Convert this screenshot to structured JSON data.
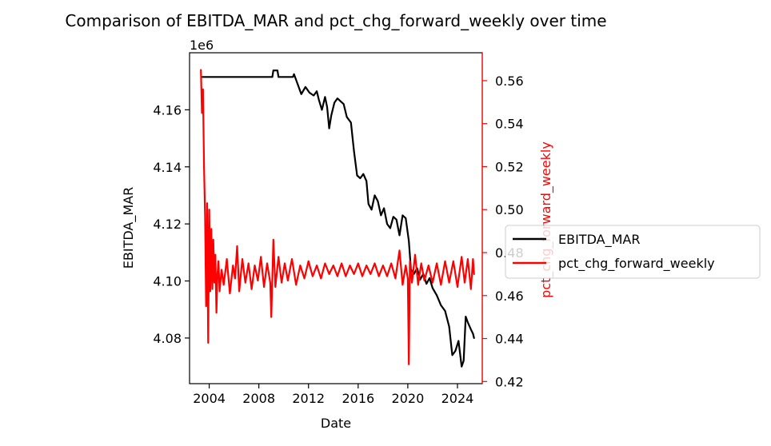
{
  "chart_data": {
    "type": "line",
    "title": "Comparison of EBITDA_MAR and pct_chg_forward_weekly over time",
    "xlabel": "Date",
    "x_range": [
      "2002-06-01",
      "2025-12-31"
    ],
    "x_ticks": [
      "2004",
      "2008",
      "2012",
      "2016",
      "2020",
      "2024"
    ],
    "grid": false,
    "legend_placement": "right, outside plot area",
    "y_left": {
      "label": "EBITDA_MAR",
      "offset_label": "1e6",
      "ylim": [
        4.064,
        4.18
      ],
      "ticks": [
        "4.08",
        "4.10",
        "4.12",
        "4.14",
        "4.16"
      ],
      "color": "#000000"
    },
    "y_right": {
      "label": "pct_chg_forward_weekly",
      "ylim": [
        0.419,
        0.573
      ],
      "ticks": [
        "0.42",
        "0.44",
        "0.46",
        "0.48",
        "0.50",
        "0.52",
        "0.54",
        "0.56"
      ],
      "color": "#ff0000"
    },
    "series": [
      {
        "name": "EBITDA_MAR",
        "axis": "left",
        "color": "#000000",
        "points": [
          [
            "2003-06",
            4.1715
          ],
          [
            "2009-02",
            4.1715
          ],
          [
            "2009-03",
            4.1738
          ],
          [
            "2009-07",
            4.1738
          ],
          [
            "2009-08",
            4.1715
          ],
          [
            "2010-10",
            4.1715
          ],
          [
            "2010-11",
            4.1725
          ],
          [
            "2011-03",
            4.1685
          ],
          [
            "2011-06",
            4.1655
          ],
          [
            "2011-10",
            4.168
          ],
          [
            "2012-02",
            4.166
          ],
          [
            "2012-06",
            4.165
          ],
          [
            "2012-09",
            4.1665
          ],
          [
            "2012-11",
            4.1635
          ],
          [
            "2013-02",
            4.16
          ],
          [
            "2013-05",
            4.1645
          ],
          [
            "2013-07",
            4.161
          ],
          [
            "2013-09",
            4.1535
          ],
          [
            "2013-11",
            4.158
          ],
          [
            "2014-02",
            4.1625
          ],
          [
            "2014-05",
            4.164
          ],
          [
            "2014-08",
            4.163
          ],
          [
            "2014-11",
            4.162
          ],
          [
            "2015-02",
            4.1575
          ],
          [
            "2015-06",
            4.1555
          ],
          [
            "2015-09",
            4.1455
          ],
          [
            "2015-12",
            4.137
          ],
          [
            "2016-03",
            4.136
          ],
          [
            "2016-06",
            4.1375
          ],
          [
            "2016-09",
            4.135
          ],
          [
            "2016-11",
            4.127
          ],
          [
            "2017-02",
            4.125
          ],
          [
            "2017-05",
            4.13
          ],
          [
            "2017-08",
            4.128
          ],
          [
            "2017-11",
            4.123
          ],
          [
            "2018-02",
            4.1255
          ],
          [
            "2018-05",
            4.12
          ],
          [
            "2018-08",
            4.1185
          ],
          [
            "2018-11",
            4.1225
          ],
          [
            "2019-02",
            4.1215
          ],
          [
            "2019-05",
            4.116
          ],
          [
            "2019-08",
            4.123
          ],
          [
            "2019-11",
            4.122
          ],
          [
            "2020-02",
            4.114
          ],
          [
            "2020-04",
            4.104
          ],
          [
            "2020-07",
            4.1025
          ],
          [
            "2020-10",
            4.1045
          ],
          [
            "2021-01",
            4.1005
          ],
          [
            "2021-04",
            4.1025
          ],
          [
            "2021-07",
            4.099
          ],
          [
            "2021-10",
            4.101
          ],
          [
            "2022-01",
            4.0975
          ],
          [
            "2022-05",
            4.095
          ],
          [
            "2022-09",
            4.0915
          ],
          [
            "2023-01",
            4.0895
          ],
          [
            "2023-05",
            4.084
          ],
          [
            "2023-08",
            4.074
          ],
          [
            "2023-11",
            4.0755
          ],
          [
            "2024-02",
            4.079
          ],
          [
            "2024-05",
            4.07
          ],
          [
            "2024-07",
            4.072
          ],
          [
            "2024-09",
            4.0875
          ],
          [
            "2024-11",
            4.0855
          ],
          [
            "2025-02",
            4.083
          ],
          [
            "2025-04",
            4.0815
          ],
          [
            "2025-05",
            4.08
          ]
        ]
      },
      {
        "name": "pct_chg_forward_weekly",
        "axis": "right",
        "color": "#ff0000",
        "points": [
          [
            "2003-05",
            0.565
          ],
          [
            "2003-06",
            0.545
          ],
          [
            "2003-07",
            0.556
          ],
          [
            "2003-08",
            0.52
          ],
          [
            "2003-09",
            0.497
          ],
          [
            "2003-10",
            0.455
          ],
          [
            "2003-11",
            0.503
          ],
          [
            "2003-12",
            0.438
          ],
          [
            "2004-01",
            0.5
          ],
          [
            "2004-02",
            0.462
          ],
          [
            "2004-03",
            0.491
          ],
          [
            "2004-04",
            0.463
          ],
          [
            "2004-05",
            0.486
          ],
          [
            "2004-06",
            0.466
          ],
          [
            "2004-07",
            0.479
          ],
          [
            "2004-08",
            0.452
          ],
          [
            "2004-09",
            0.47
          ],
          [
            "2004-10",
            0.476
          ],
          [
            "2004-11",
            0.462
          ],
          [
            "2005-01",
            0.472
          ],
          [
            "2005-03",
            0.465
          ],
          [
            "2005-06",
            0.477
          ],
          [
            "2005-09",
            0.461
          ],
          [
            "2005-12",
            0.474
          ],
          [
            "2006-02",
            0.468
          ],
          [
            "2006-04",
            0.483
          ],
          [
            "2006-06",
            0.462
          ],
          [
            "2006-09",
            0.477
          ],
          [
            "2006-12",
            0.466
          ],
          [
            "2007-03",
            0.475
          ],
          [
            "2007-06",
            0.463
          ],
          [
            "2007-09",
            0.474
          ],
          [
            "2007-12",
            0.467
          ],
          [
            "2008-03",
            0.478
          ],
          [
            "2008-06",
            0.464
          ],
          [
            "2008-09",
            0.475
          ],
          [
            "2008-12",
            0.466
          ],
          [
            "2009-01",
            0.45
          ],
          [
            "2009-03",
            0.486
          ],
          [
            "2009-05",
            0.464
          ],
          [
            "2009-08",
            0.478
          ],
          [
            "2009-11",
            0.466
          ],
          [
            "2010-02",
            0.475
          ],
          [
            "2010-05",
            0.467
          ],
          [
            "2010-09",
            0.477
          ],
          [
            "2011-01",
            0.465
          ],
          [
            "2011-05",
            0.474
          ],
          [
            "2011-09",
            0.468
          ],
          [
            "2012-01",
            0.476
          ],
          [
            "2012-05",
            0.469
          ],
          [
            "2012-09",
            0.474
          ],
          [
            "2013-01",
            0.468
          ],
          [
            "2013-05",
            0.475
          ],
          [
            "2013-09",
            0.47
          ],
          [
            "2014-01",
            0.474
          ],
          [
            "2014-05",
            0.469
          ],
          [
            "2014-09",
            0.475
          ],
          [
            "2015-01",
            0.469
          ],
          [
            "2015-05",
            0.474
          ],
          [
            "2015-09",
            0.47
          ],
          [
            "2016-01",
            0.475
          ],
          [
            "2016-05",
            0.469
          ],
          [
            "2016-09",
            0.474
          ],
          [
            "2017-01",
            0.47
          ],
          [
            "2017-05",
            0.475
          ],
          [
            "2017-09",
            0.469
          ],
          [
            "2018-01",
            0.474
          ],
          [
            "2018-05",
            0.469
          ],
          [
            "2018-09",
            0.475
          ],
          [
            "2019-01",
            0.468
          ],
          [
            "2019-05",
            0.481
          ],
          [
            "2019-08",
            0.465
          ],
          [
            "2019-11",
            0.474
          ],
          [
            "2020-01",
            0.468
          ],
          [
            "2020-02",
            0.428
          ],
          [
            "2020-03",
            0.476
          ],
          [
            "2020-05",
            0.466
          ],
          [
            "2020-08",
            0.479
          ],
          [
            "2020-11",
            0.465
          ],
          [
            "2021-02",
            0.475
          ],
          [
            "2021-05",
            0.467
          ],
          [
            "2021-09",
            0.474
          ],
          [
            "2022-01",
            0.466
          ],
          [
            "2022-05",
            0.475
          ],
          [
            "2022-09",
            0.465
          ],
          [
            "2023-01",
            0.476
          ],
          [
            "2023-05",
            0.466
          ],
          [
            "2023-09",
            0.476
          ],
          [
            "2024-01",
            0.464
          ],
          [
            "2024-05",
            0.478
          ],
          [
            "2024-08",
            0.466
          ],
          [
            "2024-11",
            0.477
          ],
          [
            "2025-02",
            0.463
          ],
          [
            "2025-04",
            0.477
          ],
          [
            "2025-05",
            0.47
          ]
        ]
      }
    ]
  }
}
